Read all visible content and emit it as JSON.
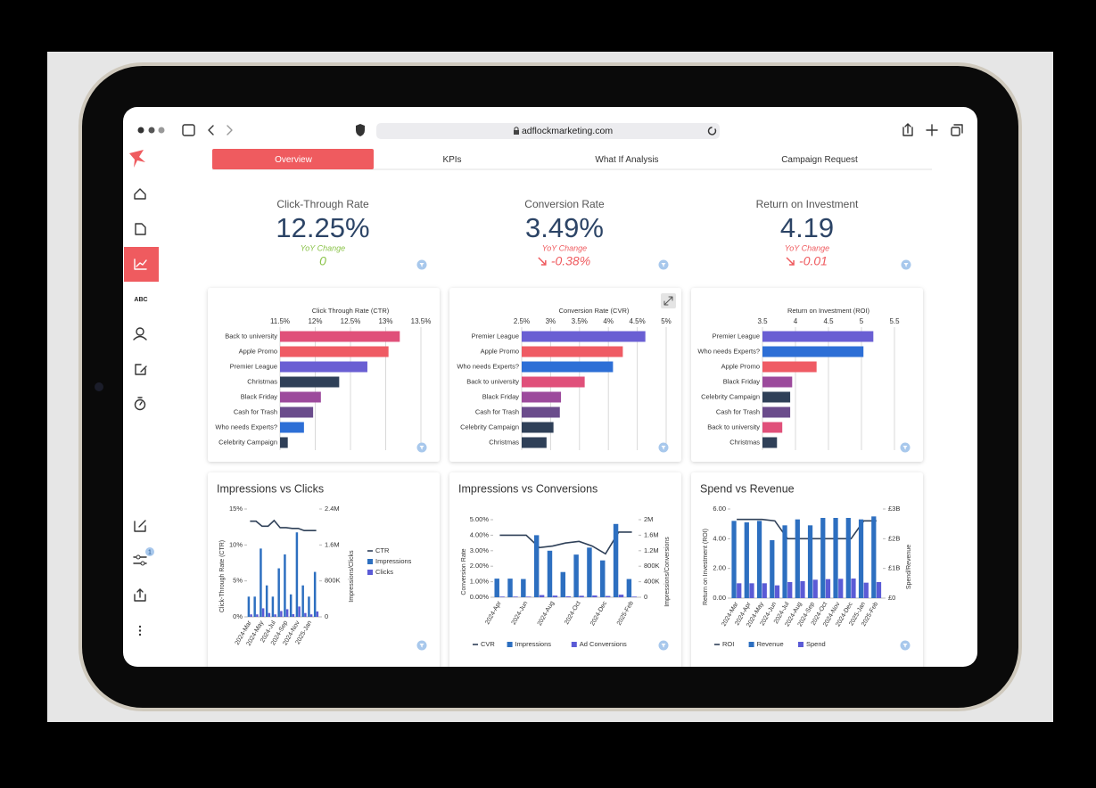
{
  "browser": {
    "url": "adflockmarketing.com"
  },
  "sidebar": {
    "abc_icon": "ABC",
    "badge": "1"
  },
  "tabs": [
    "Overview",
    "KPIs",
    "What If Analysis",
    "Campaign Request"
  ],
  "kpis": [
    {
      "label": "Click-Through Rate",
      "value": "12.25%",
      "change_label": "YoY Change",
      "change": "0",
      "change_color": "#8bc34a",
      "trend": "flat"
    },
    {
      "label": "Conversion Rate",
      "value": "3.49%",
      "change_label": "YoY Change",
      "change": "-0.38%",
      "change_color": "#ef5b5f",
      "trend": "down"
    },
    {
      "label": "Return on Investment",
      "value": "4.19",
      "change_label": "YoY Change",
      "change": "-0.01",
      "change_color": "#ef5b5f",
      "trend": "down"
    }
  ],
  "chart_data": [
    {
      "type": "hbar",
      "title": "Click Through Rate (CTR)",
      "categories": [
        "Back to university",
        "Apple Promo",
        "Premier League",
        "Christmas",
        "Black Friday",
        "Cash for Trash",
        "Who needs Experts?",
        "Celebrity Campaign"
      ],
      "values": [
        13.2,
        13.04,
        12.74,
        12.34,
        12.08,
        11.97,
        11.84,
        11.61
      ],
      "colors": [
        "#e0507a",
        "#ef5b64",
        "#6a5fd3",
        "#2f4058",
        "#9c4a9c",
        "#6b4c8c",
        "#2d6fd6",
        "#2f4058"
      ],
      "xlim": [
        11.5,
        13.5
      ],
      "xticks": [
        {
          "value": 11.5,
          "label": "11.5%"
        },
        {
          "value": 12,
          "label": "12%"
        },
        {
          "value": 12.5,
          "label": "12.5%"
        },
        {
          "value": 13,
          "label": "13%"
        },
        {
          "value": 13.5,
          "label": "13.5%"
        }
      ],
      "grid": true
    },
    {
      "type": "hbar",
      "title": "Conversion Rate (CVR)",
      "categories": [
        "Premier League",
        "Apple Promo",
        "Who needs Experts?",
        "Back to university",
        "Black Friday",
        "Cash for Trash",
        "Celebrity Campaign",
        "Christmas"
      ],
      "values": [
        4.64,
        4.25,
        4.08,
        3.59,
        3.18,
        3.16,
        3.05,
        2.93
      ],
      "colors": [
        "#6a5fd3",
        "#ef5b64",
        "#2d6fd6",
        "#e0507a",
        "#9c4a9c",
        "#6b4c8c",
        "#2f4058",
        "#2f4058"
      ],
      "xlim": [
        2.5,
        5
      ],
      "xticks": [
        {
          "value": 2.5,
          "label": "2.5%"
        },
        {
          "value": 3,
          "label": "3%"
        },
        {
          "value": 3.5,
          "label": "3.5%"
        },
        {
          "value": 4,
          "label": "4%"
        },
        {
          "value": 4.5,
          "label": "4.5%"
        },
        {
          "value": 5,
          "label": "5%"
        }
      ],
      "grid": true
    },
    {
      "type": "hbar",
      "title": "Return on Investment (ROI)",
      "categories": [
        "Premier League",
        "Who needs Experts?",
        "Apple Promo",
        "Black Friday",
        "Celebrity Campaign",
        "Cash for Trash",
        "Back to university",
        "Christmas"
      ],
      "values": [
        5.18,
        5.03,
        4.32,
        3.95,
        3.92,
        3.92,
        3.8,
        3.72
      ],
      "colors": [
        "#6a5fd3",
        "#2d6fd6",
        "#ef5b64",
        "#9c4a9c",
        "#2f4058",
        "#6b4c8c",
        "#e0507a",
        "#2f4058"
      ],
      "xlim": [
        3.5,
        5.5
      ],
      "xticks": [
        3.5,
        4,
        4.5,
        5,
        5.5
      ],
      "grid": true
    },
    {
      "type": "combo",
      "title": "Impressions vs Clicks",
      "categories": [
        "2024-Mar",
        null,
        "2024-May",
        null,
        "2024-Jul",
        null,
        "2024-Sep",
        null,
        "2024-Nov",
        null,
        "2025-Jan",
        null
      ],
      "ylabel": "Click-Through Rate (CTR)",
      "y2label": "Impressions/Clicks",
      "ylim": [
        0,
        15
      ],
      "yticks": [
        {
          "value": 0,
          "label": "0%"
        },
        {
          "value": 5,
          "label": "5%"
        },
        {
          "value": 10,
          "label": "10%"
        },
        {
          "value": 15,
          "label": "15%"
        }
      ],
      "y2lim": [
        0,
        2400000
      ],
      "y2ticks": [
        0,
        {
          "value": 800000,
          "label": "800K"
        },
        {
          "value": 1600000,
          "label": "1.6M"
        },
        {
          "value": 2400000,
          "label": "2.4M"
        }
      ],
      "legend": "right",
      "series": [
        {
          "name": "CTR",
          "kind": "line",
          "color": "#2f4058",
          "values": [
            13.3,
            13.3,
            12.6,
            12.6,
            13.4,
            12.4,
            12.4,
            12.3,
            12.3,
            12.0,
            12.0,
            12.0
          ]
        },
        {
          "name": "Impressions",
          "kind": "bar",
          "axis": "y2",
          "color": "#2d6fc0",
          "values": [
            450000,
            450000,
            1520000,
            700000,
            450000,
            1080000,
            1390000,
            500000,
            1880000,
            700000,
            450000,
            1000000
          ]
        },
        {
          "name": "Clicks",
          "kind": "bar",
          "axis": "y2",
          "color": "#5b5bd6",
          "values": [
            55000,
            55000,
            190000,
            85000,
            55000,
            130000,
            170000,
            60000,
            230000,
            85000,
            55000,
            120000
          ]
        }
      ]
    },
    {
      "type": "combo",
      "title": "Impressions vs Conversions",
      "categories": [
        "2024-Apr",
        null,
        "2024-Jun",
        null,
        "2024-Aug",
        null,
        "2024-Oct",
        null,
        "2024-Dec",
        null,
        "2025-Feb"
      ],
      "ylabel": "Conversion Rate",
      "y2label": "Impressions/Conversions",
      "ylim": [
        0,
        5
      ],
      "yticks": [
        {
          "value": 0,
          "label": "0.00%"
        },
        {
          "value": 1,
          "label": "1.00%"
        },
        {
          "value": 2,
          "label": "2.00%"
        },
        {
          "value": 3,
          "label": "3.00%"
        },
        {
          "value": 4,
          "label": "4.00%"
        },
        {
          "value": 5,
          "label": "5.00%"
        }
      ],
      "y2lim": [
        0,
        2000000
      ],
      "y2ticks": [
        0,
        {
          "value": 400000,
          "label": "400K"
        },
        {
          "value": 800000,
          "label": "800K"
        },
        {
          "value": 1200000,
          "label": "1.2M"
        },
        {
          "value": 1600000,
          "label": "1.6M"
        },
        {
          "value": 2000000,
          "label": "2M"
        }
      ],
      "legend": "bottom",
      "series": [
        {
          "name": "CVR",
          "kind": "line",
          "color": "#2f4058",
          "values": [
            4.0,
            4.0,
            4.0,
            3.2,
            3.3,
            3.5,
            3.6,
            3.3,
            2.8,
            4.2,
            4.2
          ]
        },
        {
          "name": "Impressions",
          "kind": "bar",
          "axis": "y2",
          "color": "#2d6fc0",
          "values": [
            480000,
            480000,
            470000,
            1600000,
            1200000,
            650000,
            1100000,
            1280000,
            950000,
            1890000,
            470000
          ]
        },
        {
          "name": "Ad Conversions",
          "kind": "bar",
          "axis": "y2",
          "color": "#5b5bd6",
          "values": [
            17000,
            17000,
            16000,
            56000,
            42000,
            23000,
            38000,
            45000,
            33000,
            66000,
            16000
          ]
        }
      ]
    },
    {
      "type": "combo",
      "title": "Spend vs Revenue",
      "categories": [
        "2024-Mar",
        "2024-Apr",
        "2024-May",
        "2024-Jun",
        "2024-Jul",
        "2024-Aug",
        "2024-Sep",
        "2024-Oct",
        "2024-Nov",
        "2024-Dec",
        "2025-Jan",
        "2025-Feb"
      ],
      "ylabel": "Return on Investment (ROI)",
      "y2label": "Spend/Revenue",
      "ylim": [
        0,
        6
      ],
      "yticks": [
        {
          "value": 0,
          "label": "0.00"
        },
        {
          "value": 2,
          "label": "2.00"
        },
        {
          "value": 4,
          "label": "4.00"
        },
        {
          "value": 6,
          "label": "6.00"
        }
      ],
      "y2lim": [
        0,
        3000000000
      ],
      "y2ticks": [
        {
          "value": 0,
          "label": "£0"
        },
        {
          "value": 1000000000,
          "label": "£1B"
        },
        {
          "value": 2000000000,
          "label": "£2B"
        },
        {
          "value": 3000000000,
          "label": "£3B"
        }
      ],
      "legend": "bottom",
      "series": [
        {
          "name": "ROI",
          "kind": "line",
          "color": "#2f4058",
          "values": [
            5.3,
            5.3,
            5.3,
            5.2,
            4.0,
            4.0,
            4.0,
            4.0,
            4.0,
            4.0,
            5.2,
            5.2
          ]
        },
        {
          "name": "Revenue",
          "kind": "bar",
          "axis": "y2",
          "color": "#2d6fc0",
          "values": [
            2600000000,
            2550000000,
            2600000000,
            1950000000,
            2450000000,
            2650000000,
            2450000000,
            2700000000,
            2700000000,
            2700000000,
            2650000000,
            2750000000
          ]
        },
        {
          "name": "Spend",
          "kind": "bar",
          "axis": "y2",
          "color": "#5b5bd6",
          "values": [
            500000000,
            500000000,
            500000000,
            430000000,
            540000000,
            570000000,
            620000000,
            640000000,
            650000000,
            660000000,
            520000000,
            540000000
          ]
        }
      ]
    }
  ]
}
